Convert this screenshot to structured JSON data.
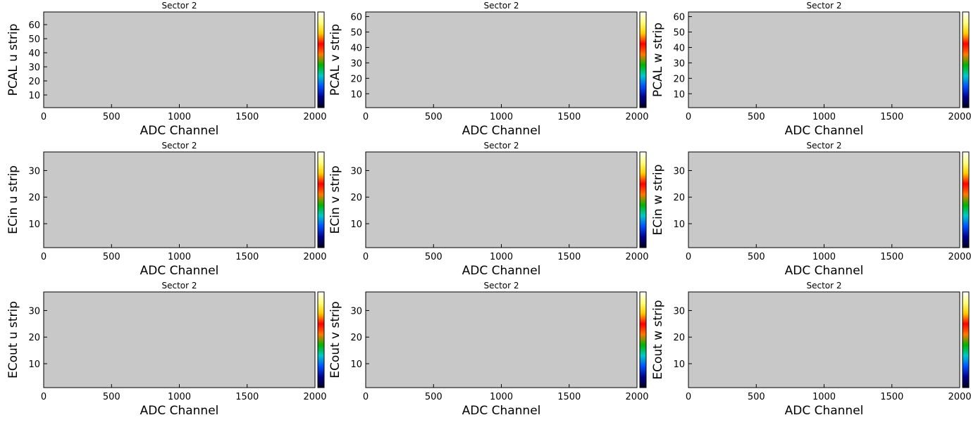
{
  "colors": {
    "plot_background": "#c8c8c8",
    "colorbar_stops": [
      "#000020",
      "#00008c",
      "#0050ff",
      "#00c8c8",
      "#00b400",
      "#ff7800",
      "#ff0000",
      "#ffd000",
      "#ffff80",
      "#ffffff"
    ]
  },
  "chart_data": [
    {
      "type": "heatmap",
      "title": "Sector 2",
      "xlabel": "ADC Channel",
      "ylabel": "PCAL u strip",
      "xlim": [
        0,
        2000
      ],
      "ylim": [
        1,
        69
      ],
      "xticks": [
        "0",
        "500",
        "1000",
        "1500",
        "2000"
      ],
      "yticks": [
        "10",
        "20",
        "30",
        "40",
        "50",
        "60"
      ],
      "values": []
    },
    {
      "type": "heatmap",
      "title": "Sector 2",
      "xlabel": "ADC Channel",
      "ylabel": "PCAL v strip",
      "xlim": [
        0,
        2000
      ],
      "ylim": [
        1,
        63
      ],
      "xticks": [
        "0",
        "500",
        "1000",
        "1500",
        "2000"
      ],
      "yticks": [
        "10",
        "20",
        "30",
        "40",
        "50",
        "60"
      ],
      "values": []
    },
    {
      "type": "heatmap",
      "title": "Sector 2",
      "xlabel": "ADC Channel",
      "ylabel": "PCAL w strip",
      "xlim": [
        0,
        2000
      ],
      "ylim": [
        1,
        63
      ],
      "xticks": [
        "0",
        "500",
        "1000",
        "1500",
        "2000"
      ],
      "yticks": [
        "10",
        "20",
        "30",
        "40",
        "50",
        "60"
      ],
      "values": []
    },
    {
      "type": "heatmap",
      "title": "Sector 2",
      "xlabel": "ADC Channel",
      "ylabel": "ECin u strip",
      "xlim": [
        0,
        2000
      ],
      "ylim": [
        1,
        37
      ],
      "xticks": [
        "0",
        "500",
        "1000",
        "1500",
        "2000"
      ],
      "yticks": [
        "10",
        "20",
        "30"
      ],
      "values": []
    },
    {
      "type": "heatmap",
      "title": "Sector 2",
      "xlabel": "ADC Channel",
      "ylabel": "ECin v strip",
      "xlim": [
        0,
        2000
      ],
      "ylim": [
        1,
        37
      ],
      "xticks": [
        "0",
        "500",
        "1000",
        "1500",
        "2000"
      ],
      "yticks": [
        "10",
        "20",
        "30"
      ],
      "values": []
    },
    {
      "type": "heatmap",
      "title": "Sector 2",
      "xlabel": "ADC Channel",
      "ylabel": "ECin w strip",
      "xlim": [
        0,
        2000
      ],
      "ylim": [
        1,
        37
      ],
      "xticks": [
        "0",
        "500",
        "1000",
        "1500",
        "2000"
      ],
      "yticks": [
        "10",
        "20",
        "30"
      ],
      "values": []
    },
    {
      "type": "heatmap",
      "title": "Sector 2",
      "xlabel": "ADC Channel",
      "ylabel": "ECout u strip",
      "xlim": [
        0,
        2000
      ],
      "ylim": [
        1,
        37
      ],
      "xticks": [
        "0",
        "500",
        "1000",
        "1500",
        "2000"
      ],
      "yticks": [
        "10",
        "20",
        "30"
      ],
      "values": []
    },
    {
      "type": "heatmap",
      "title": "Sector 2",
      "xlabel": "ADC Channel",
      "ylabel": "ECout v strip",
      "xlim": [
        0,
        2000
      ],
      "ylim": [
        1,
        37
      ],
      "xticks": [
        "0",
        "500",
        "1000",
        "1500",
        "2000"
      ],
      "yticks": [
        "10",
        "20",
        "30"
      ],
      "values": []
    },
    {
      "type": "heatmap",
      "title": "Sector 2",
      "xlabel": "ADC Channel",
      "ylabel": "ECout w strip",
      "xlim": [
        0,
        2000
      ],
      "ylim": [
        1,
        37
      ],
      "xticks": [
        "0",
        "500",
        "1000",
        "1500",
        "2000"
      ],
      "yticks": [
        "10",
        "20",
        "30"
      ],
      "values": []
    }
  ]
}
